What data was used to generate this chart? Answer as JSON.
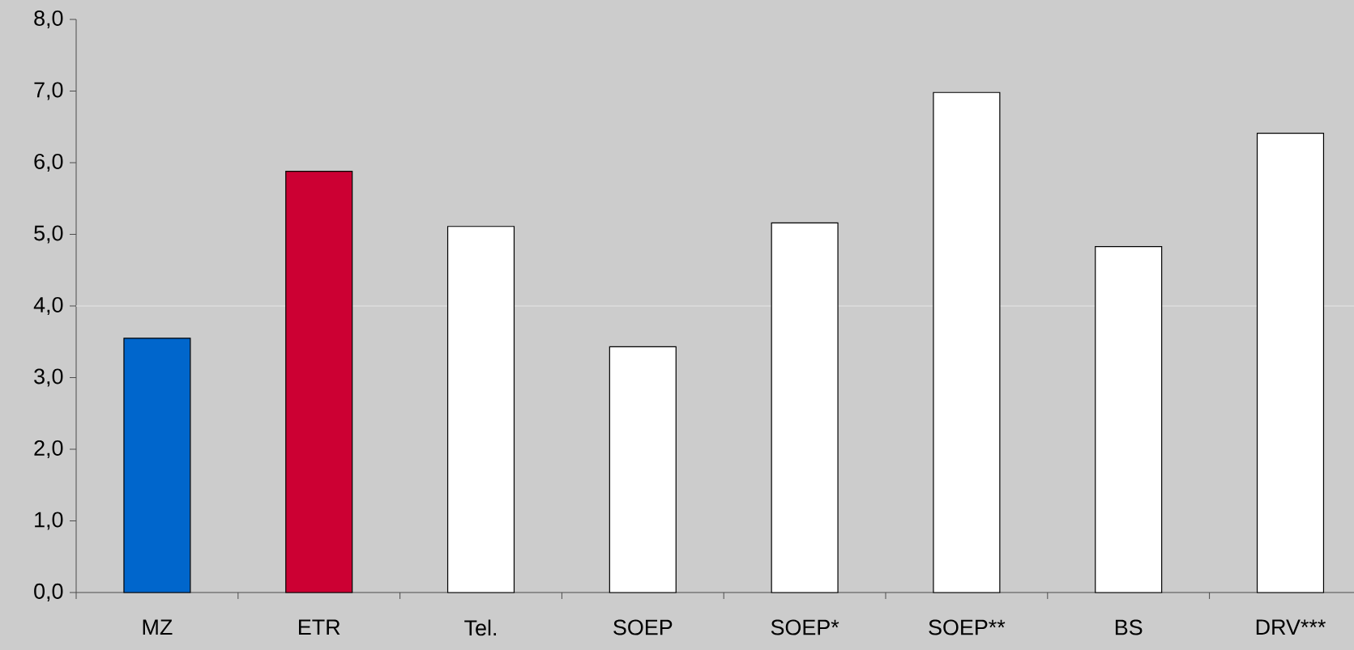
{
  "chart_data": {
    "type": "bar",
    "categories": [
      "MZ",
      "ETR",
      "Tel.",
      "SOEP",
      "SOEP*",
      "SOEP**",
      "BS",
      "DRV***"
    ],
    "values": [
      3.55,
      5.88,
      5.11,
      3.43,
      5.16,
      6.98,
      4.83,
      6.41
    ],
    "colors": [
      "#0066cc",
      "#cc0033",
      "#ffffff",
      "#ffffff",
      "#ffffff",
      "#ffffff",
      "#ffffff",
      "#ffffff"
    ],
    "ylim": [
      0,
      8
    ],
    "yticks": [
      {
        "value": 0,
        "label": "0,0"
      },
      {
        "value": 1,
        "label": "1,0"
      },
      {
        "value": 2,
        "label": "2,0"
      },
      {
        "value": 3,
        "label": "3,0"
      },
      {
        "value": 4,
        "label": "4,0"
      },
      {
        "value": 5,
        "label": "5,0"
      },
      {
        "value": 6,
        "label": "6,0"
      },
      {
        "value": 7,
        "label": "7,0"
      },
      {
        "value": 8,
        "label": "8,0"
      }
    ],
    "ref_lines": [
      {
        "axis": "y",
        "value": 4,
        "color": "#dedede"
      }
    ],
    "grid": false
  }
}
